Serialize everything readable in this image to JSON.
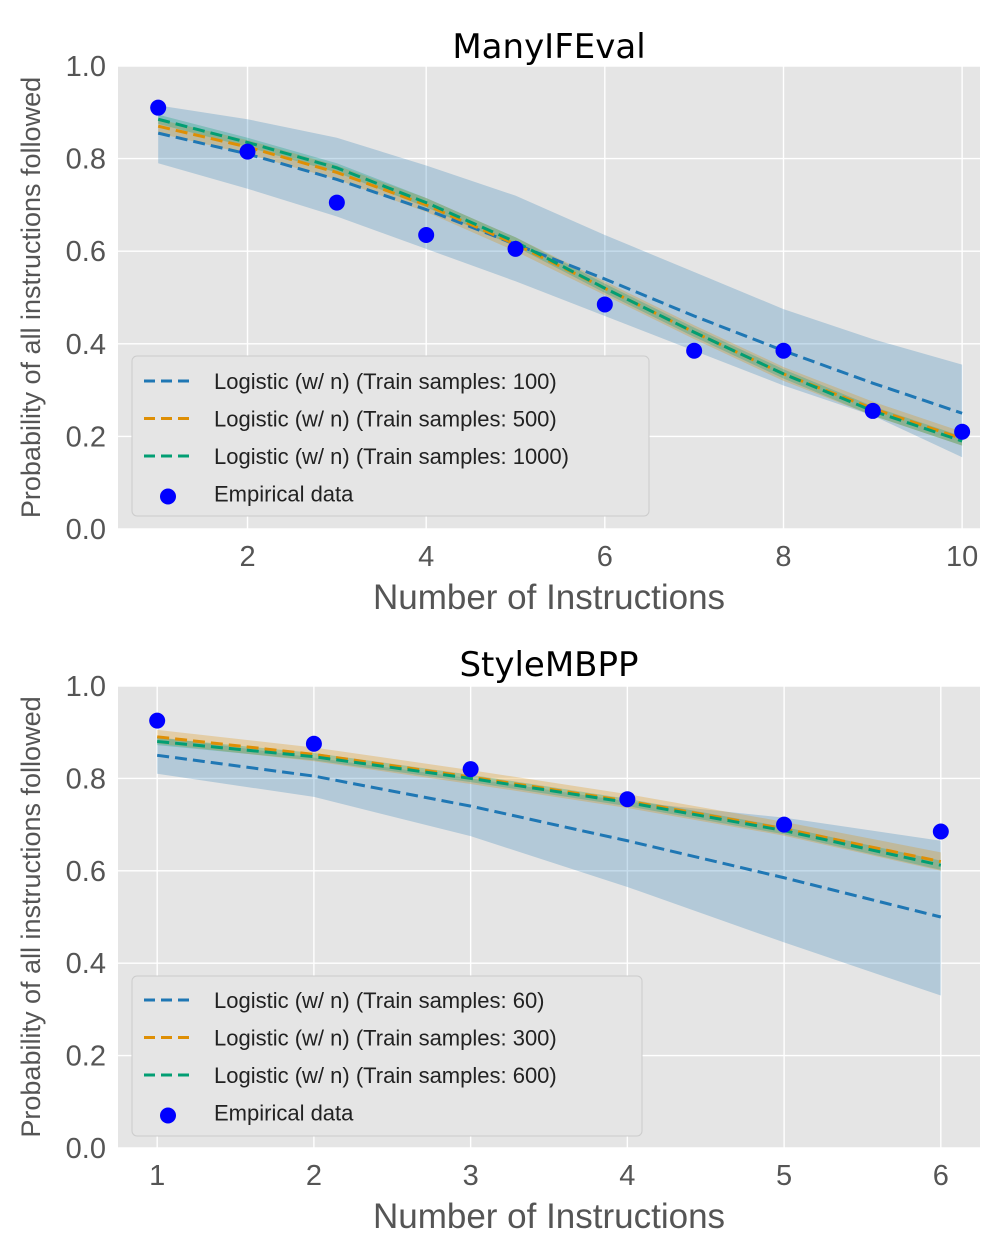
{
  "chart_data": [
    {
      "type": "line",
      "title": "ManyIFEval",
      "xlabel": "Number of Instructions",
      "ylabel": "Probability of all instructions followed",
      "xlim": [
        0.55,
        10.2
      ],
      "ylim": [
        0.0,
        1.0
      ],
      "xticks": [
        2,
        4,
        6,
        8,
        10
      ],
      "yticks": [
        0.0,
        0.2,
        0.4,
        0.6,
        0.8,
        1.0
      ],
      "grid": true,
      "legend_position": "lower-left",
      "x": [
        1,
        2,
        3,
        4,
        5,
        6,
        7,
        8,
        9,
        10
      ],
      "series": [
        {
          "name": "Logistic (w/ n) (Train samples: 100)",
          "color": "#1f77b4",
          "style": "dashed",
          "values": [
            0.855,
            0.81,
            0.755,
            0.69,
            0.615,
            0.54,
            0.46,
            0.385,
            0.315,
            0.25
          ],
          "band_low": [
            0.79,
            0.735,
            0.675,
            0.605,
            0.535,
            0.46,
            0.385,
            0.31,
            0.245,
            0.155
          ],
          "band_high": [
            0.915,
            0.885,
            0.845,
            0.785,
            0.72,
            0.635,
            0.555,
            0.475,
            0.41,
            0.355
          ]
        },
        {
          "name": "Logistic (w/ n) (Train samples: 500)",
          "color": "#de8f05",
          "style": "dashed",
          "values": [
            0.87,
            0.825,
            0.77,
            0.7,
            0.615,
            0.52,
            0.425,
            0.335,
            0.26,
            0.195
          ],
          "band_low": [
            0.855,
            0.81,
            0.755,
            0.685,
            0.6,
            0.505,
            0.41,
            0.32,
            0.245,
            0.18
          ],
          "band_high": [
            0.885,
            0.84,
            0.785,
            0.715,
            0.63,
            0.535,
            0.44,
            0.35,
            0.275,
            0.21
          ]
        },
        {
          "name": "Logistic (w/ n) (Train samples: 1000)",
          "color": "#029e73",
          "style": "dashed",
          "values": [
            0.885,
            0.835,
            0.78,
            0.705,
            0.62,
            0.52,
            0.425,
            0.335,
            0.255,
            0.19
          ],
          "band_low": [
            0.875,
            0.825,
            0.77,
            0.695,
            0.61,
            0.51,
            0.415,
            0.325,
            0.245,
            0.18
          ],
          "band_high": [
            0.895,
            0.845,
            0.79,
            0.715,
            0.63,
            0.53,
            0.435,
            0.345,
            0.265,
            0.2
          ]
        }
      ],
      "scatter": {
        "name": "Empirical data",
        "color": "#0000ff",
        "x": [
          1,
          2,
          3,
          4,
          5,
          6,
          7,
          8,
          9,
          10
        ],
        "y": [
          0.91,
          0.815,
          0.705,
          0.635,
          0.605,
          0.485,
          0.385,
          0.385,
          0.255,
          0.21
        ]
      }
    },
    {
      "type": "line",
      "title": "StyleMBPP",
      "xlabel": "Number of Instructions",
      "ylabel": "Probability of all instructions followed",
      "xlim": [
        0.75,
        6.25
      ],
      "ylim": [
        0.0,
        1.0
      ],
      "xticks": [
        1,
        2,
        3,
        4,
        5,
        6
      ],
      "yticks": [
        0.0,
        0.2,
        0.4,
        0.6,
        0.8,
        1.0
      ],
      "grid": true,
      "legend_position": "lower-left",
      "x": [
        1,
        2,
        3,
        4,
        5,
        6
      ],
      "series": [
        {
          "name": "Logistic (w/ n) (Train samples: 60)",
          "color": "#1f77b4",
          "style": "dashed",
          "values": [
            0.85,
            0.805,
            0.74,
            0.665,
            0.585,
            0.5
          ],
          "band_low": [
            0.81,
            0.76,
            0.675,
            0.565,
            0.445,
            0.33
          ],
          "band_high": [
            0.89,
            0.845,
            0.8,
            0.75,
            0.715,
            0.665
          ]
        },
        {
          "name": "Logistic (w/ n) (Train samples: 300)",
          "color": "#de8f05",
          "style": "dashed",
          "values": [
            0.89,
            0.852,
            0.803,
            0.751,
            0.691,
            0.62
          ],
          "band_low": [
            0.875,
            0.837,
            0.788,
            0.736,
            0.676,
            0.6
          ],
          "band_high": [
            0.905,
            0.867,
            0.818,
            0.766,
            0.706,
            0.64
          ]
        },
        {
          "name": "Logistic (w/ n) (Train samples: 600)",
          "color": "#029e73",
          "style": "dashed",
          "values": [
            0.88,
            0.847,
            0.8,
            0.748,
            0.687,
            0.612
          ],
          "band_low": [
            0.872,
            0.839,
            0.792,
            0.74,
            0.679,
            0.602
          ],
          "band_high": [
            0.888,
            0.855,
            0.808,
            0.756,
            0.695,
            0.622
          ]
        }
      ],
      "scatter": {
        "name": "Empirical data",
        "color": "#0000ff",
        "x": [
          1,
          2,
          3,
          4,
          5,
          6
        ],
        "y": [
          0.925,
          0.875,
          0.82,
          0.755,
          0.7,
          0.685
        ]
      }
    }
  ]
}
